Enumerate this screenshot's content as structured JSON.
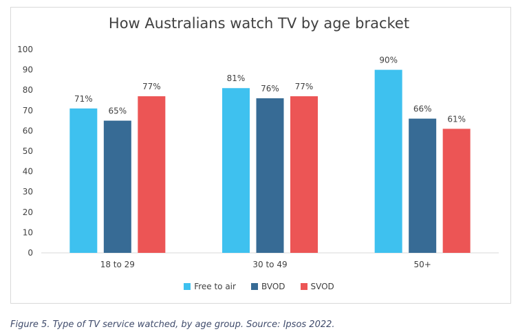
{
  "chart_data": {
    "type": "bar",
    "title": "How Australians watch TV by age bracket",
    "categories": [
      "18 to 29",
      "30 to 49",
      "50+"
    ],
    "series": [
      {
        "name": "Free to air",
        "color": "#3ec1ef",
        "values": [
          71,
          81,
          90
        ],
        "labels": [
          "71%",
          "81%",
          "90%"
        ]
      },
      {
        "name": "BVOD",
        "color": "#376b95",
        "values": [
          65,
          76,
          66
        ],
        "labels": [
          "65%",
          "76%",
          "66%"
        ]
      },
      {
        "name": "SVOD",
        "color": "#ec5555",
        "values": [
          77,
          77,
          61
        ],
        "labels": [
          "77%",
          "77%",
          "61%"
        ]
      }
    ],
    "ylim": [
      0,
      100
    ],
    "yticks": [
      "0",
      "10",
      "20",
      "30",
      "40",
      "50",
      "60",
      "70",
      "80",
      "90",
      "100"
    ],
    "grid": false,
    "legend_position": "bottom"
  },
  "caption": "Figure 5. Type of TV service watched, by age group. Source: Ipsos 2022."
}
